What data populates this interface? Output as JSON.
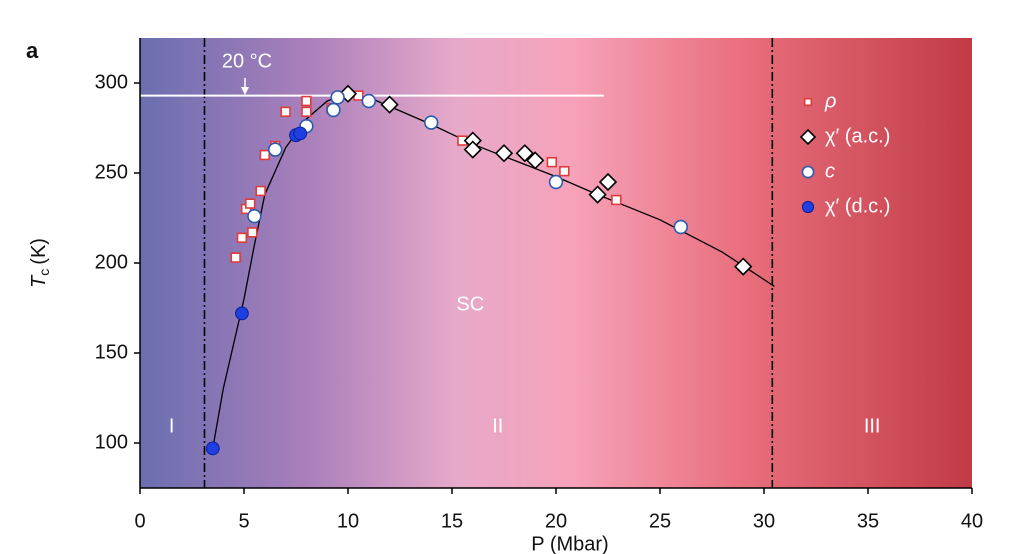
{
  "chart_data": {
    "type": "scatter",
    "panel_label": "a",
    "xlabel": "P (Mbar)",
    "ylabel": "T",
    "ylabel_sub": "c",
    "ylabel_unit": "(K)",
    "xlim": [
      0,
      40
    ],
    "ylim": [
      75,
      325
    ],
    "xticks": [
      0,
      5,
      10,
      15,
      20,
      25,
      30,
      35,
      40
    ],
    "yticks": [
      100,
      150,
      200,
      250,
      300
    ],
    "legend": "upper right",
    "annotations": {
      "room_temp": "20 °C",
      "sc": "SC",
      "region1": "I",
      "region2": "II",
      "region3": "III"
    },
    "room_temp_line": {
      "value": 293,
      "xend": 22.3,
      "color": "#ffffff"
    },
    "region_bounds": [
      3.1,
      30.4
    ],
    "series": [
      {
        "name": "ρ",
        "marker": "square",
        "color": "#e03a3a",
        "fill": "#ffffff",
        "x": [
          4.6,
          4.9,
          5.1,
          5.3,
          5.4,
          5.8,
          6.0,
          6.5,
          7.0,
          8.0,
          8.0,
          9.2,
          10.5,
          15.5,
          19.8,
          20.4,
          22.9
        ],
        "values": [
          203,
          214,
          230,
          233,
          217,
          240,
          260,
          265,
          284,
          284,
          290,
          286,
          293,
          268,
          256,
          251,
          235
        ]
      },
      {
        "name": "χ′ (a.c.)",
        "marker": "diamond",
        "color": "#000000",
        "fill": "#ffffff",
        "x": [
          10.0,
          12.0,
          16.0,
          16.0,
          17.5,
          18.5,
          19.0,
          22.0,
          22.5,
          29.0
        ],
        "values": [
          294,
          288,
          268,
          263,
          261,
          261,
          257,
          238,
          245,
          198
        ]
      },
      {
        "name": "c",
        "marker": "circle",
        "color": "#2a5bb0",
        "fill": "#ffffff",
        "x": [
          5.5,
          6.5,
          8.0,
          9.3,
          9.5,
          11.0,
          14.0,
          20.0,
          26.0
        ],
        "values": [
          226,
          263,
          276,
          285,
          292,
          290,
          278,
          245,
          220
        ]
      },
      {
        "name": "χ′ (d.c.)",
        "marker": "ball",
        "color": "#1f3fe0",
        "fill": "#1f3fe0",
        "x": [
          3.5,
          4.9,
          7.5,
          7.7
        ],
        "values": [
          97,
          172,
          271,
          272
        ]
      }
    ],
    "fit": {
      "color": "#000000",
      "x": [
        3.5,
        4.0,
        4.5,
        5.0,
        5.5,
        6.0,
        7.0,
        8.0,
        9.0,
        10.0,
        11.0,
        12.0,
        14.0,
        16.0,
        18.0,
        20.0,
        22.0,
        25.0,
        28.0,
        30.5
      ],
      "values": [
        97,
        130,
        155,
        180,
        210,
        238,
        264,
        280,
        290,
        294,
        292,
        287,
        277,
        266,
        257,
        248,
        238,
        224,
        206,
        187
      ]
    }
  }
}
